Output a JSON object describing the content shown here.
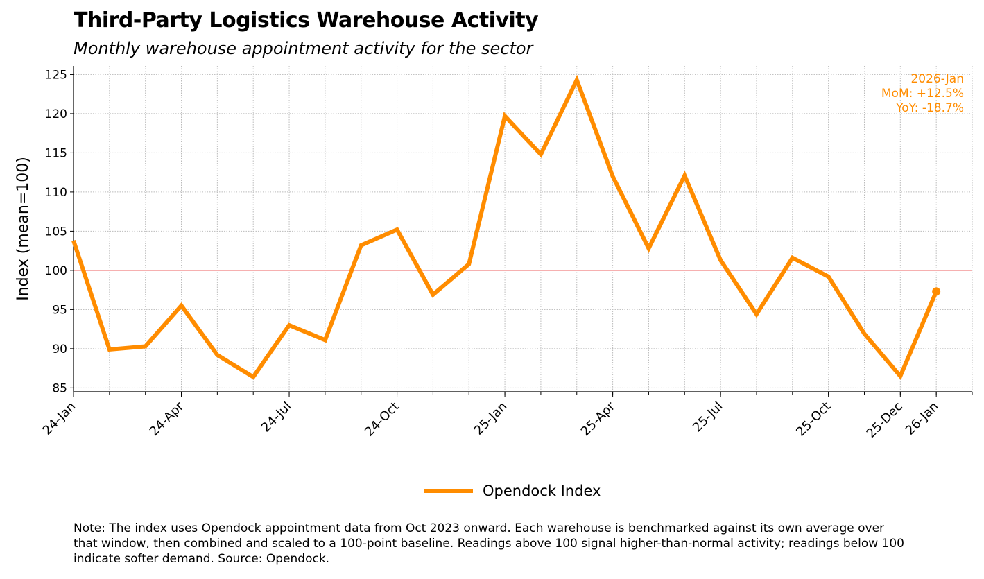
{
  "chart_data": {
    "type": "line",
    "title": "Third-Party Logistics Warehouse Activity",
    "subtitle": "Monthly warehouse appointment activity for the sector",
    "xlabel": "",
    "ylabel": "Index (mean=100)",
    "x": [
      "2024-01",
      "2024-02",
      "2024-03",
      "2024-04",
      "2024-05",
      "2024-06",
      "2024-07",
      "2024-08",
      "2024-09",
      "2024-10",
      "2024-11",
      "2024-12",
      "2025-01",
      "2025-02",
      "2025-03",
      "2025-04",
      "2025-05",
      "2025-06",
      "2025-07",
      "2025-08",
      "2025-09",
      "2025-10",
      "2025-11",
      "2025-12",
      "2026-01"
    ],
    "series": [
      {
        "name": "Opendock Index",
        "color": "#ff8c00",
        "values": [
          103.8,
          89.9,
          90.3,
          95.5,
          89.2,
          86.4,
          93.0,
          91.1,
          103.2,
          105.2,
          96.9,
          100.8,
          119.7,
          114.8,
          124.3,
          112.0,
          102.8,
          112.1,
          101.3,
          94.4,
          101.6,
          99.2,
          91.9,
          86.5,
          97.3
        ]
      }
    ],
    "xtick_labels": [
      {
        "month": "2024-01",
        "label": "24-Jan"
      },
      {
        "month": "2024-04",
        "label": "24-Apr"
      },
      {
        "month": "2024-07",
        "label": "24-Jul"
      },
      {
        "month": "2024-10",
        "label": "24-Oct"
      },
      {
        "month": "2025-01",
        "label": "25-Jan"
      },
      {
        "month": "2025-04",
        "label": "25-Apr"
      },
      {
        "month": "2025-07",
        "label": "25-Jul"
      },
      {
        "month": "2025-10",
        "label": "25-Oct"
      },
      {
        "month": "2025-12",
        "label": "25-Dec"
      },
      {
        "month": "2026-01",
        "label": "26-Jan"
      }
    ],
    "yticks": [
      85,
      90,
      95,
      100,
      105,
      110,
      115,
      120,
      125
    ],
    "ylim": [
      84.5,
      126.1
    ],
    "xlim": [
      "2024-01",
      "2026-02"
    ],
    "reference_line": {
      "value": 100,
      "color": "#f08080"
    },
    "grid": true,
    "legend_placement": "bottom-center",
    "annotation": {
      "lines": [
        "2026-Jan",
        "MoM: +12.5%",
        "YoY: -18.7%"
      ],
      "color": "#ff8c00",
      "placement": "top-right"
    }
  },
  "note": "Note: The index uses Opendock appointment data from Oct 2023 onward. Each warehouse is benchmarked against its own average over that window, then combined and scaled to a 100-point baseline. Readings above 100 signal higher-than-normal activity; readings below 100 indicate softer demand. Source: Opendock."
}
